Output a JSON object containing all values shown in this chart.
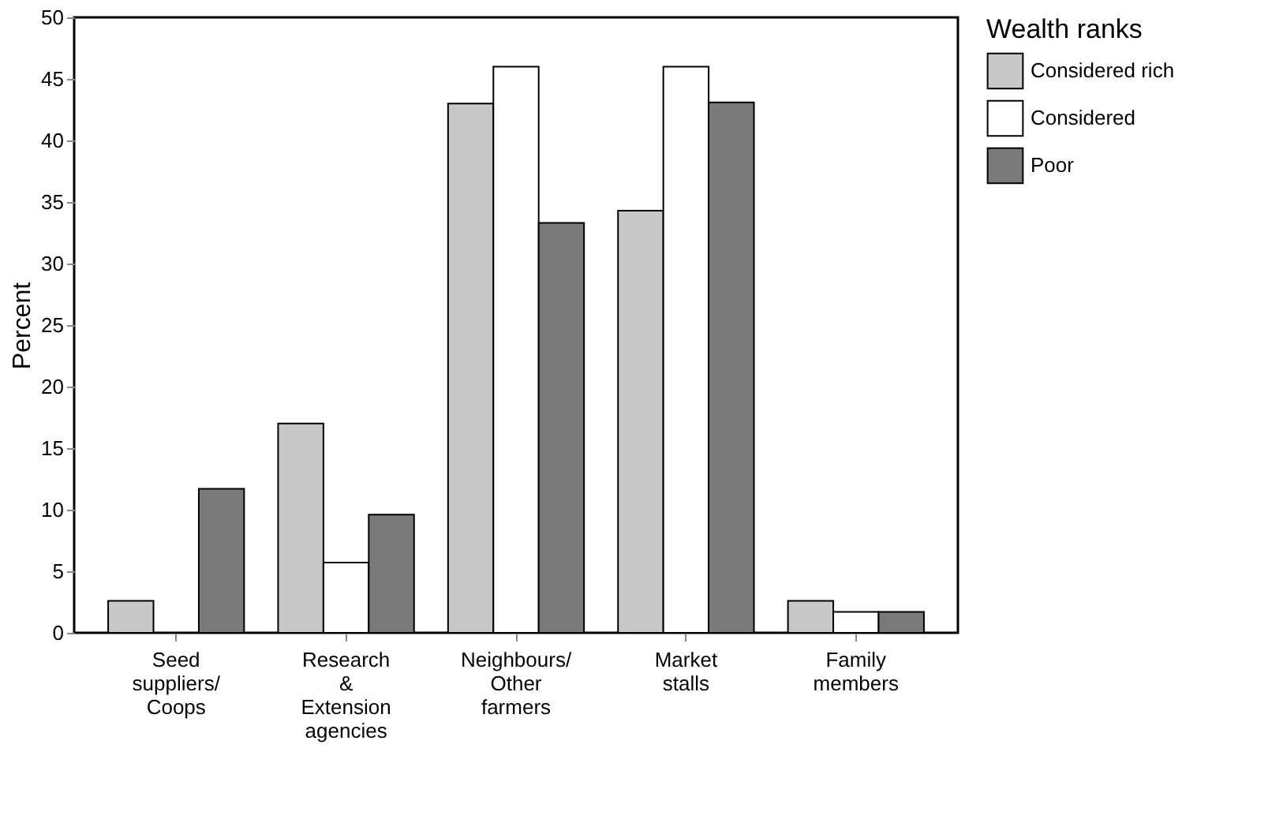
{
  "chart_data": {
    "type": "bar",
    "ylabel": "Percent",
    "legend_title": "Wealth ranks",
    "legend": "right",
    "grid": false,
    "categories": [
      "Seed suppliers/ Coops",
      "Research & Extension agencies",
      "Neighbours/ Other farmers",
      "Market stalls",
      "Family members"
    ],
    "ylim": [
      0,
      50
    ],
    "yticks": [
      0,
      5,
      10,
      15,
      20,
      25,
      30,
      35,
      40,
      45,
      50
    ],
    "series": [
      {
        "name": "Considered rich",
        "color": "#c8c8c8",
        "values": [
          2.6,
          17.0,
          43.0,
          34.3,
          2.6
        ]
      },
      {
        "name": "Considered",
        "color": "#ffffff",
        "values": [
          0,
          5.7,
          46.0,
          46.0,
          1.7
        ]
      },
      {
        "name": "Poor",
        "color": "#7a7a7a",
        "values": [
          11.7,
          9.6,
          33.3,
          43.1,
          1.7
        ]
      }
    ]
  }
}
